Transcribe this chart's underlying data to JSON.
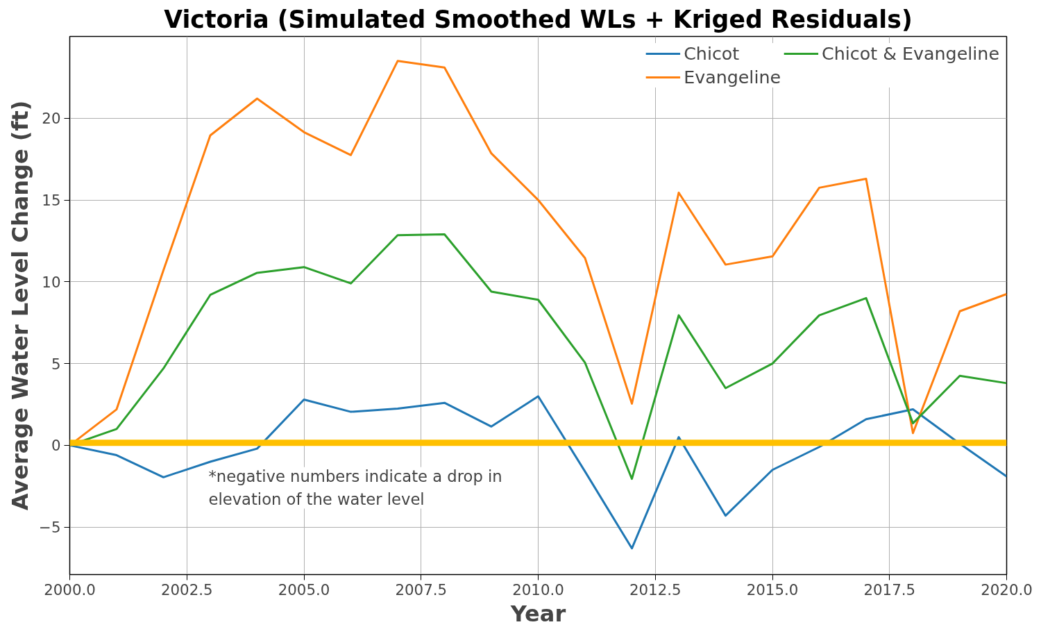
{
  "chart_data": {
    "type": "line",
    "title": "Victoria (Simulated Smoothed WLs + Kriged Residuals)",
    "xlabel": "Year",
    "ylabel": "Average Water Level Change (ft)",
    "x": [
      2000,
      2001,
      2002,
      2003,
      2004,
      2005,
      2006,
      2007,
      2008,
      2009,
      2010,
      2011,
      2012,
      2013,
      2014,
      2015,
      2016,
      2017,
      2018,
      2019,
      2020
    ],
    "series": [
      {
        "name": "Chicot",
        "color": "#1f77b4",
        "values": [
          0,
          -0.6,
          -1.95,
          -1.0,
          -0.2,
          2.8,
          2.05,
          2.25,
          2.6,
          1.15,
          3.0,
          -1.6,
          -6.3,
          0.5,
          -4.3,
          -1.5,
          -0.1,
          1.6,
          2.2,
          0.1,
          -1.9
        ]
      },
      {
        "name": "Evangeline",
        "color": "#ff7f0e",
        "values": [
          0,
          2.2,
          10.7,
          18.95,
          21.2,
          19.15,
          17.75,
          23.5,
          23.1,
          17.85,
          15.0,
          11.45,
          2.55,
          15.45,
          11.05,
          11.55,
          15.75,
          16.3,
          0.75,
          8.2,
          9.25
        ]
      },
      {
        "name": "Chicot & Evangeline",
        "color": "#2ca02c",
        "values": [
          0,
          1.0,
          4.7,
          9.2,
          10.55,
          10.9,
          9.9,
          12.85,
          12.9,
          9.4,
          8.9,
          5.05,
          -2.05,
          7.95,
          3.5,
          5.0,
          7.95,
          9.0,
          1.35,
          4.25,
          3.8
        ]
      }
    ],
    "xlim": [
      2000,
      2020
    ],
    "ylim": [
      -7.9,
      25
    ],
    "xticks": [
      {
        "value": 2000,
        "label": "2000.0"
      },
      {
        "value": 2002.5,
        "label": "2002.5"
      },
      {
        "value": 2005,
        "label": "2005.0"
      },
      {
        "value": 2007.5,
        "label": "2007.5"
      },
      {
        "value": 2010,
        "label": "2010.0"
      },
      {
        "value": 2012.5,
        "label": "2012.5"
      },
      {
        "value": 2015,
        "label": "2015.0"
      },
      {
        "value": 2017.5,
        "label": "2017.5"
      },
      {
        "value": 2020,
        "label": "2020.0"
      }
    ],
    "yticks": [
      {
        "value": -5,
        "label": "−5"
      },
      0,
      5,
      10,
      15,
      20
    ],
    "ref_lines": [
      {
        "axis": "y",
        "value": 0.15,
        "color": "#ffc000"
      }
    ],
    "annotations": [
      "*negative numbers indicate a drop in\n elevation of the   water level"
    ],
    "grid": true,
    "legend": "top right"
  }
}
